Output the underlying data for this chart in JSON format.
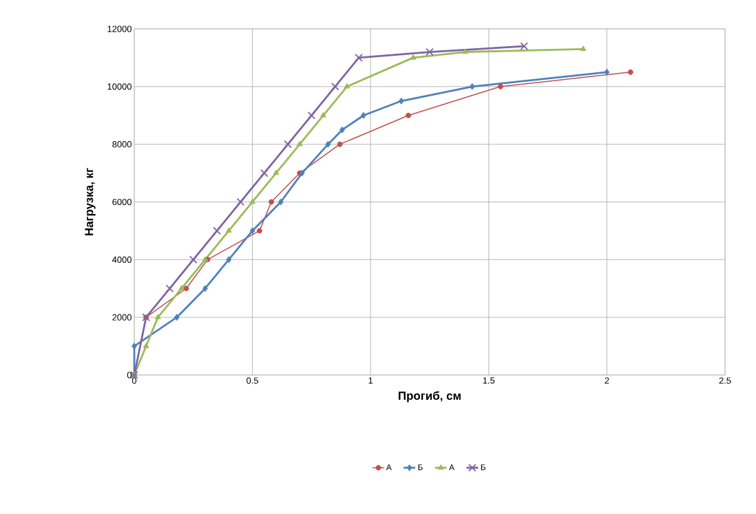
{
  "chart_data": {
    "type": "line",
    "xlabel": "Прогиб, см",
    "ylabel": "Нагрузка, кг",
    "xlim": [
      0,
      2.5
    ],
    "xticks": [
      0,
      0.5,
      1,
      1.5,
      2,
      2.5
    ],
    "ylim": [
      0,
      12000
    ],
    "yticks": [
      0,
      2000,
      4000,
      6000,
      8000,
      10000,
      12000
    ],
    "grid": true,
    "legend": "bottom",
    "series": [
      {
        "name": "А",
        "color": "#c0504d",
        "marker": "circle",
        "x": [
          0,
          0.05,
          0.22,
          0.31,
          0.53,
          0.58,
          0.7,
          0.87,
          1.16,
          1.55,
          2.1
        ],
        "values": [
          0,
          2000,
          3000,
          4000,
          5000,
          6000,
          7000,
          8000,
          9000,
          10000,
          10500
        ]
      },
      {
        "name": "Б",
        "color": "#4f81bd",
        "marker": "diamond",
        "x": [
          0,
          0,
          0.18,
          0.3,
          0.4,
          0.5,
          0.62,
          0.71,
          0.82,
          0.88,
          0.97,
          1.13,
          1.43,
          2.0
        ],
        "values": [
          0,
          1000,
          2000,
          3000,
          4000,
          5000,
          6000,
          7000,
          8000,
          8500,
          9000,
          9500,
          10000,
          10500
        ]
      },
      {
        "name": "А",
        "color": "#9bbb59",
        "marker": "triangle",
        "x": [
          0,
          0.05,
          0.1,
          0.2,
          0.3,
          0.4,
          0.5,
          0.6,
          0.7,
          0.8,
          0.9,
          1.18,
          1.4,
          1.9
        ],
        "values": [
          0,
          1000,
          2000,
          3000,
          4000,
          5000,
          6000,
          7000,
          8000,
          9000,
          10000,
          11000,
          11200,
          11300
        ]
      },
      {
        "name": "Б",
        "color": "#8064a2",
        "marker": "cross",
        "x": [
          0,
          0.05,
          0.15,
          0.25,
          0.35,
          0.45,
          0.55,
          0.65,
          0.75,
          0.85,
          0.95,
          1.25,
          1.65
        ],
        "values": [
          0,
          2000,
          3000,
          4000,
          5000,
          6000,
          7000,
          8000,
          9000,
          10000,
          11000,
          11200,
          11400
        ]
      }
    ]
  }
}
